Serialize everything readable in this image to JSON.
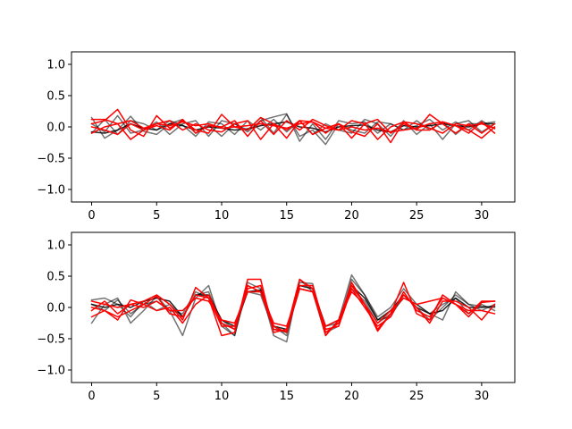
{
  "chart_data": [
    {
      "type": "line",
      "xlim": [
        -1.55,
        32.55
      ],
      "ylim": [
        -1.2,
        1.2
      ],
      "xticks": [
        0,
        5,
        10,
        15,
        20,
        25,
        30
      ],
      "xtick_labels": [
        "0",
        "5",
        "10",
        "15",
        "20",
        "25",
        "30"
      ],
      "yticks": [
        -1.0,
        -0.5,
        0.0,
        0.5,
        1.0
      ],
      "ytick_labels": [
        "−1.0",
        "−0.5",
        "0.0",
        "0.5",
        "1.0"
      ],
      "x": [
        0,
        1,
        2,
        3,
        4,
        5,
        6,
        7,
        8,
        9,
        10,
        11,
        12,
        13,
        14,
        15,
        16,
        17,
        18,
        19,
        20,
        21,
        22,
        23,
        24,
        25,
        26,
        27,
        28,
        29,
        30,
        31
      ],
      "series": [
        {
          "color": "#000000",
          "opacity": 0.55,
          "values": [
            0.15,
            -0.18,
            -0.05,
            0.17,
            -0.07,
            -0.12,
            0.05,
            0.12,
            -0.1,
            0.03,
            -0.15,
            0.05,
            -0.08,
            0.1,
            0.16,
            0.21,
            -0.23,
            0.05,
            -0.2,
            0.1,
            0.05,
            0.08,
            -0.1,
            0.05,
            -0.05,
            0.02,
            0.12,
            -0.05,
            0.08,
            -0.05,
            0.1,
            -0.03
          ]
        },
        {
          "color": "#000000",
          "opacity": 0.55,
          "values": [
            -0.1,
            0.12,
            -0.12,
            0.1,
            0.05,
            -0.05,
            0.1,
            0.03,
            -0.15,
            0.08,
            0.05,
            -0.12,
            0.1,
            -0.05,
            0.12,
            -0.08,
            0.1,
            -0.12,
            0.05,
            -0.05,
            -0.1,
            0.12,
            0.05,
            -0.15,
            0.1,
            -0.12,
            0.05,
            -0.2,
            0.05,
            0.1,
            -0.08,
            0.05
          ]
        },
        {
          "color": "#000000",
          "opacity": 0.55,
          "values": [
            0.05,
            -0.08,
            0.18,
            -0.1,
            -0.05,
            0.08,
            -0.12,
            0.05,
            0.1,
            -0.15,
            0.1,
            0.05,
            -0.05,
            0.15,
            -0.1,
            0.2,
            -0.15,
            -0.05,
            -0.28,
            0.05,
            -0.05,
            -0.1,
            0.08,
            0.05,
            -0.05,
            0.1,
            -0.05,
            0.08,
            -0.12,
            0.05,
            0.05,
            0.08
          ]
        },
        {
          "color": "#000000",
          "opacity": 0.85,
          "values": [
            -0.08,
            -0.1,
            -0.05,
            0.05,
            -0.02,
            -0.05,
            0.05,
            0.02,
            -0.05,
            0.0,
            -0.02,
            -0.05,
            -0.03,
            0.02,
            0.05,
            0.08,
            0.0,
            -0.02,
            -0.08,
            0.0,
            0.02,
            0.03,
            -0.05,
            -0.08,
            0.02,
            0.0,
            0.02,
            0.05,
            0.02,
            0.0,
            0.05,
            0.05
          ]
        },
        {
          "color": "#ff0000",
          "opacity": 1.0,
          "values": [
            0.05,
            0.1,
            0.28,
            -0.05,
            -0.15,
            0.18,
            -0.02,
            0.1,
            -0.05,
            -0.1,
            0.2,
            0.0,
            -0.05,
            0.15,
            0.05,
            -0.18,
            0.1,
            0.08,
            -0.1,
            0.05,
            -0.18,
            0.05,
            0.12,
            -0.1,
            0.05,
            -0.05,
            0.2,
            0.05,
            -0.1,
            0.05,
            -0.1,
            0.05
          ]
        },
        {
          "color": "#ff0000",
          "opacity": 1.0,
          "values": [
            0.12,
            0.12,
            0.05,
            -0.2,
            -0.05,
            0.02,
            -0.05,
            0.12,
            -0.1,
            0.02,
            0.0,
            0.1,
            -0.15,
            0.1,
            -0.12,
            0.1,
            -0.05,
            0.12,
            0.02,
            -0.05,
            0.1,
            0.05,
            -0.2,
            0.0,
            0.08,
            0.05,
            -0.02,
            -0.1,
            0.05,
            0.02,
            0.05,
            -0.02
          ]
        },
        {
          "color": "#ff0000",
          "opacity": 1.0,
          "values": [
            0.0,
            -0.05,
            -0.12,
            0.05,
            -0.05,
            0.05,
            0.1,
            -0.05,
            0.05,
            -0.05,
            -0.08,
            0.05,
            0.1,
            -0.2,
            0.05,
            -0.05,
            0.1,
            -0.12,
            -0.02,
            0.05,
            -0.08,
            -0.15,
            0.05,
            -0.25,
            0.08,
            -0.05,
            -0.05,
            0.08,
            0.02,
            -0.1,
            0.08,
            -0.1
          ]
        },
        {
          "color": "#ff0000",
          "opacity": 1.0,
          "values": [
            -0.1,
            0.0,
            0.05,
            0.1,
            -0.02,
            0.05,
            0.02,
            0.08,
            0.02,
            0.05,
            -0.02,
            0.0,
            0.02,
            0.05,
            0.02,
            -0.02,
            0.05,
            0.08,
            -0.02,
            -0.05,
            0.0,
            -0.05,
            -0.02,
            -0.08,
            -0.05,
            -0.02,
            0.05,
            0.08,
            0.02,
            -0.05,
            -0.18,
            0.0
          ]
        }
      ]
    },
    {
      "type": "line",
      "xlim": [
        -1.55,
        32.55
      ],
      "ylim": [
        -1.2,
        1.2
      ],
      "xticks": [
        0,
        5,
        10,
        15,
        20,
        25,
        30
      ],
      "xtick_labels": [
        "0",
        "5",
        "10",
        "15",
        "20",
        "25",
        "30"
      ],
      "yticks": [
        -1.0,
        -0.5,
        0.0,
        0.5,
        1.0
      ],
      "ytick_labels": [
        "−1.0",
        "−0.5",
        "0.0",
        "0.5",
        "1.0"
      ],
      "x": [
        0,
        1,
        2,
        3,
        4,
        5,
        6,
        7,
        8,
        9,
        10,
        11,
        12,
        13,
        14,
        15,
        16,
        17,
        18,
        19,
        20,
        21,
        22,
        23,
        24,
        25,
        26,
        27,
        28,
        29,
        30,
        31
      ],
      "series": [
        {
          "color": "#000000",
          "opacity": 0.55,
          "values": [
            -0.25,
            0.05,
            0.15,
            -0.25,
            -0.05,
            0.18,
            -0.05,
            -0.45,
            0.15,
            0.35,
            -0.3,
            -0.45,
            0.4,
            0.3,
            -0.45,
            -0.55,
            0.45,
            0.25,
            -0.45,
            -0.2,
            0.52,
            0.2,
            -0.15,
            0.0,
            0.3,
            0.05,
            -0.1,
            -0.2,
            0.25,
            0.05,
            0.02,
            0.0
          ]
        },
        {
          "color": "#000000",
          "opacity": 0.55,
          "values": [
            0.12,
            0.15,
            0.05,
            -0.15,
            0.1,
            -0.05,
            0.05,
            -0.15,
            0.2,
            0.25,
            -0.25,
            -0.45,
            0.35,
            0.25,
            -0.3,
            -0.45,
            0.4,
            0.38,
            -0.4,
            -0.3,
            0.45,
            0.2,
            -0.2,
            -0.15,
            0.2,
            0.0,
            -0.2,
            0.0,
            0.2,
            0.05,
            -0.05,
            0.05
          ]
        },
        {
          "color": "#000000",
          "opacity": 0.55,
          "values": [
            0.05,
            -0.05,
            0.12,
            -0.1,
            0.05,
            0.1,
            -0.05,
            -0.1,
            0.25,
            0.15,
            -0.2,
            -0.35,
            0.25,
            0.2,
            -0.35,
            -0.4,
            0.3,
            0.25,
            -0.3,
            -0.25,
            0.3,
            0.1,
            -0.25,
            -0.1,
            0.15,
            0.05,
            -0.1,
            0.05,
            0.15,
            -0.1,
            0.05,
            -0.05
          ]
        },
        {
          "color": "#000000",
          "opacity": 0.85,
          "values": [
            0.05,
            0.0,
            0.05,
            0.0,
            0.1,
            0.15,
            0.1,
            -0.15,
            0.2,
            0.2,
            -0.2,
            -0.3,
            0.25,
            0.28,
            -0.3,
            -0.35,
            0.35,
            0.3,
            -0.3,
            -0.2,
            0.35,
            0.15,
            -0.2,
            -0.05,
            0.2,
            0.0,
            -0.1,
            -0.05,
            0.15,
            0.0,
            0.0,
            0.02
          ]
        },
        {
          "color": "#ff0000",
          "opacity": 1.0,
          "values": [
            -0.05,
            0.1,
            -0.1,
            0.05,
            0.1,
            0.2,
            0.05,
            -0.2,
            0.32,
            0.15,
            -0.45,
            -0.4,
            0.45,
            0.45,
            -0.4,
            -0.35,
            0.45,
            0.3,
            -0.45,
            -0.2,
            0.35,
            0.05,
            -0.38,
            -0.1,
            0.4,
            -0.1,
            -0.2,
            0.2,
            0.05,
            -0.15,
            0.08,
            0.1
          ]
        },
        {
          "color": "#ff0000",
          "opacity": 1.0,
          "values": [
            0.0,
            -0.05,
            -0.15,
            -0.05,
            0.05,
            -0.05,
            0.0,
            -0.25,
            0.05,
            0.2,
            -0.25,
            -0.35,
            0.3,
            0.35,
            -0.3,
            -0.4,
            0.35,
            0.35,
            -0.35,
            -0.3,
            0.3,
            0.0,
            -0.3,
            -0.15,
            0.25,
            -0.05,
            -0.15,
            0.15,
            0.05,
            -0.05,
            -0.05,
            -0.1
          ]
        },
        {
          "color": "#ff0000",
          "opacity": 1.0,
          "values": [
            -0.15,
            -0.05,
            -0.2,
            0.12,
            0.05,
            0.18,
            -0.1,
            -0.15,
            0.2,
            0.15,
            -0.3,
            -0.3,
            0.35,
            0.25,
            -0.35,
            -0.38,
            0.3,
            0.25,
            -0.4,
            -0.25,
            0.4,
            0.05,
            -0.35,
            -0.1,
            0.2,
            0.0,
            -0.25,
            0.1,
            0.1,
            0.0,
            -0.2,
            0.05
          ]
        },
        {
          "color": "#ff0000",
          "opacity": 1.0,
          "values": [
            0.1,
            0.05,
            0.0,
            0.05,
            0.0,
            0.1,
            -0.05,
            -0.05,
            0.15,
            0.1,
            -0.2,
            -0.25,
            0.25,
            0.25,
            -0.25,
            -0.3,
            0.3,
            0.25,
            -0.3,
            -0.2,
            0.25,
            0.05,
            -0.25,
            -0.05,
            0.15,
            0.05,
            0.1,
            0.15,
            0.05,
            -0.1,
            0.1,
            0.1
          ]
        }
      ]
    }
  ]
}
